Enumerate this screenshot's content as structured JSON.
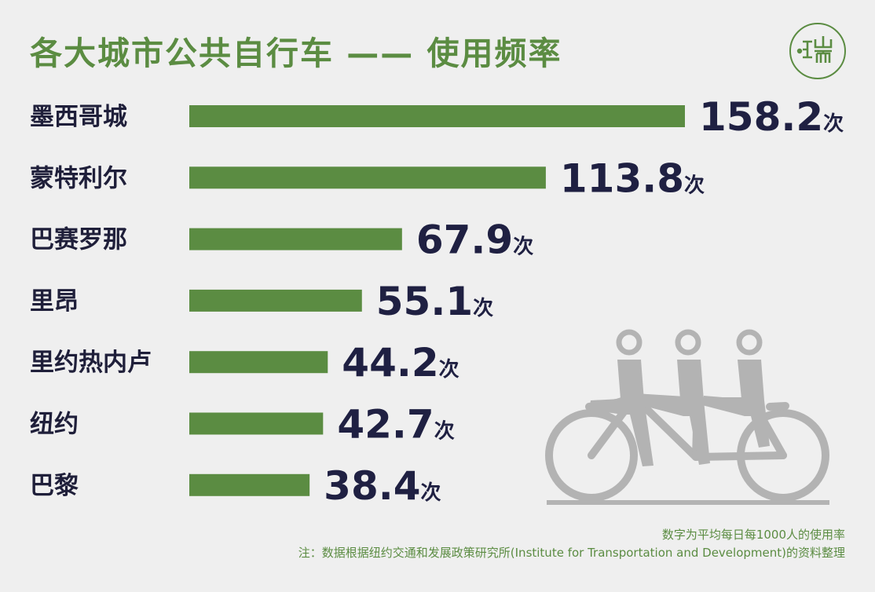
{
  "title": "各大城市公共自行车 —— 使用频率",
  "logo_text": "正山而",
  "unit": "次",
  "colors": {
    "bar": "#5b8c42",
    "value_text": "#1f2042",
    "label_text": "#1f1f3a",
    "accent": "#5b8c42",
    "illustration": "#b3b3b3"
  },
  "chart_data": {
    "type": "bar",
    "orientation": "horizontal",
    "title": "各大城市公共自行车 —— 使用频率",
    "categories": [
      "墨西哥城",
      "蒙特利尔",
      "巴赛罗那",
      "里昂",
      "里约热内卢",
      "纽约",
      "巴黎"
    ],
    "values": [
      158.2,
      113.8,
      67.9,
      55.1,
      44.2,
      42.7,
      38.4
    ],
    "value_labels": [
      "158.2",
      "113.8",
      "67.9",
      "55.1",
      "44.2",
      "42.7",
      "38.4"
    ],
    "unit": "次",
    "xlim": [
      0,
      158.2
    ],
    "grid": false,
    "legend": "none"
  },
  "notes": {
    "line1": "数字为平均每日每1000人的使用率",
    "line2": "注：数据根据纽约交通和发展政策研究所(Institute for Transportation and Development)的资料整理"
  }
}
